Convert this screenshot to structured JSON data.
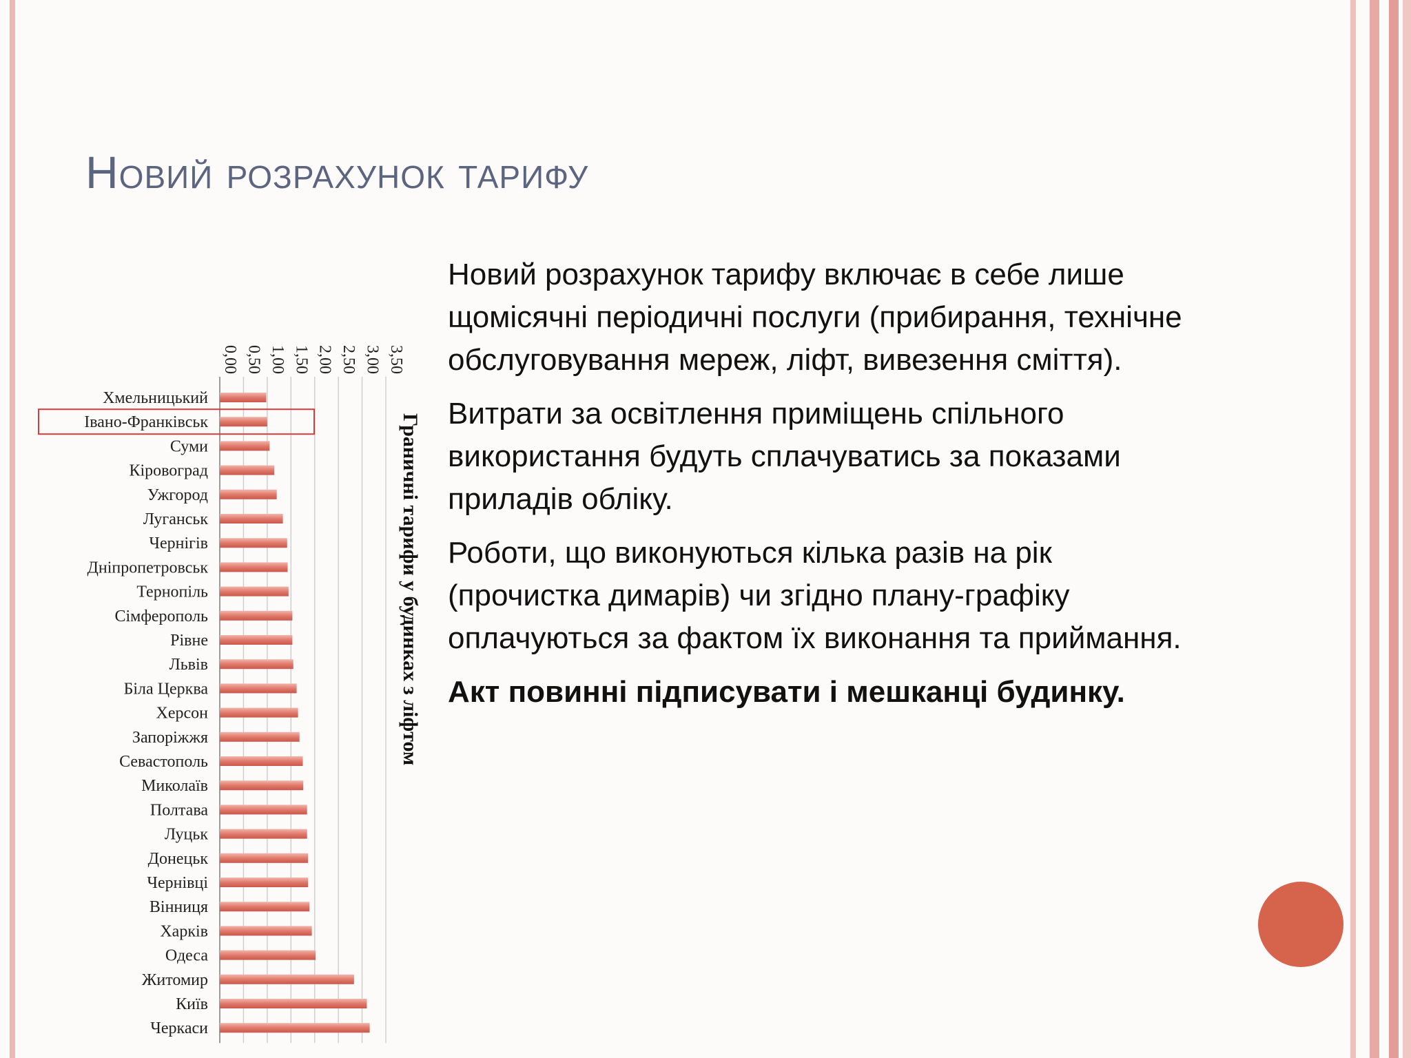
{
  "slide": {
    "title": "Новий розрахунок тарифу",
    "paragraphs": [
      {
        "lines": [
          "Новий розрахунок тарифу включає в себе лише",
          "щомісячні періодичні послуги (прибирання, технічне",
          "обслуговування мереж, ліфт, вивезення сміття)."
        ],
        "bold": false
      },
      {
        "lines": [
          "Витрати за освітлення приміщень спільного",
          "використання будуть сплачуватись за показами",
          "приладів обліку."
        ],
        "bold": false
      },
      {
        "lines": [
          "Роботи, що виконуються кілька разів на рік",
          "(прочистка димарів) чи згідно плану-графіку",
          "оплачуються за фактом їх виконання та приймання."
        ],
        "bold": false
      },
      {
        "lines": [
          "Акт повинні підписувати і мешканці будинку."
        ],
        "bold": true
      }
    ]
  },
  "colors": {
    "title": "#5c6580",
    "bar": "#e07a6c",
    "highlight_box": "#d93a3a",
    "accent_circle": "#d6644c"
  },
  "chart_data": {
    "type": "bar",
    "orientation": "horizontal",
    "ylabel": "Граничні тарифи у будинках з ліфтом",
    "xlim": [
      0,
      3.5
    ],
    "x_ticks": [
      "0,00",
      "0,50",
      "1,00",
      "1,50",
      "2,00",
      "2,50",
      "3,00",
      "3,50"
    ],
    "grid": true,
    "highlighted_category": "Івано-Франківськ",
    "categories": [
      "Хмельницький",
      "Івано-Франківськ",
      "Суми",
      "Кіровоград",
      "Ужгород",
      "Луганськ",
      "Чернігів",
      "Дніпропетровськ",
      "Тернопіль",
      "Сімферополь",
      "Рівне",
      "Львів",
      "Біла Церква",
      "Херсон",
      "Запоріжжя",
      "Севастополь",
      "Миколаїв",
      "Полтава",
      "Луцьк",
      "Донецьк",
      "Чернівці",
      "Вінниця",
      "Харків",
      "Одеса",
      "Житомир",
      "Київ",
      "Черкаси"
    ],
    "values": [
      0.98,
      1.0,
      1.05,
      1.15,
      1.2,
      1.33,
      1.42,
      1.43,
      1.45,
      1.53,
      1.53,
      1.55,
      1.62,
      1.65,
      1.68,
      1.75,
      1.76,
      1.84,
      1.84,
      1.86,
      1.86,
      1.89,
      1.94,
      2.02,
      2.83,
      3.1,
      3.16
    ]
  }
}
